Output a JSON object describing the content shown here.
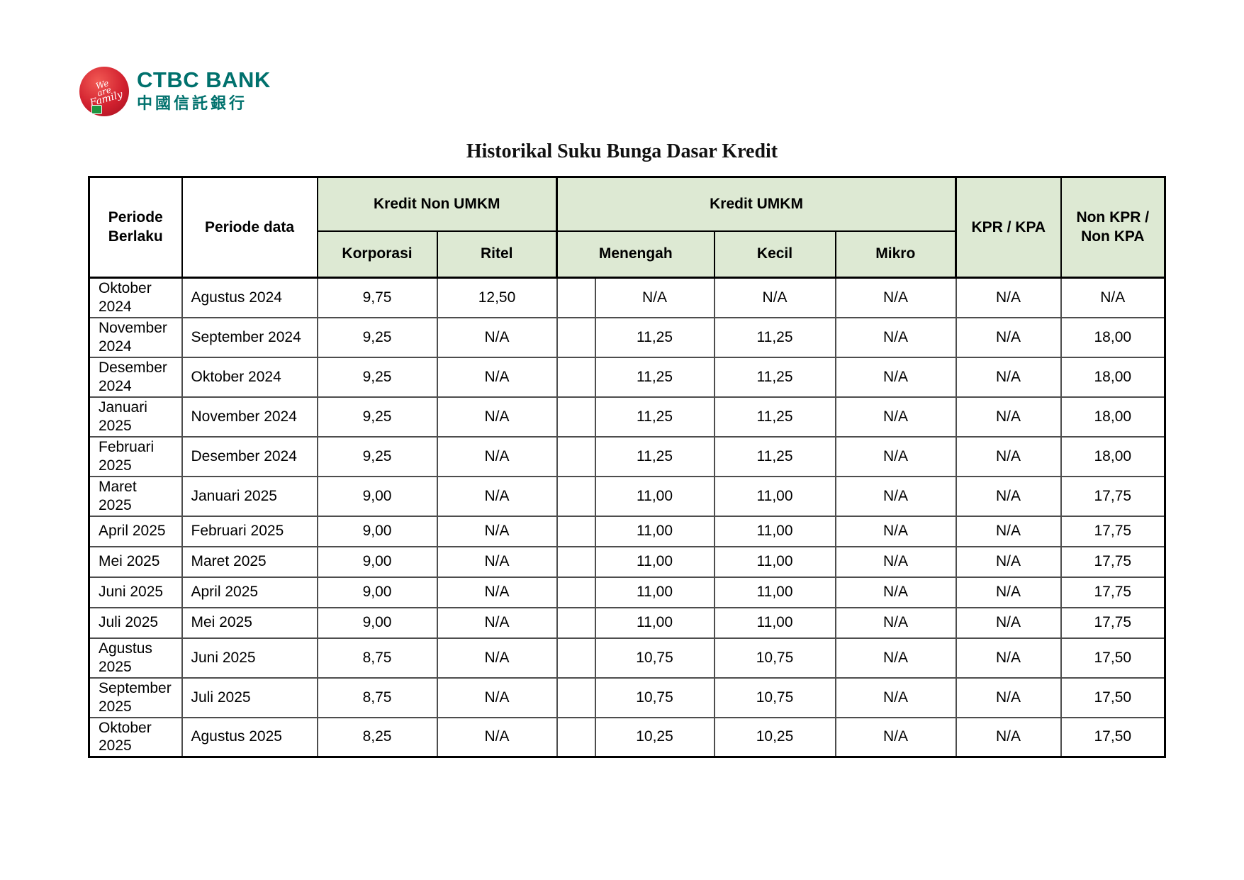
{
  "logo": {
    "bank_name": "CTBC BANK",
    "bank_name_cn": "中國信託銀行",
    "emblem_script": {
      "line1": "We",
      "line2": "are",
      "line3": "Family"
    }
  },
  "title": "Historikal Suku Bunga Dasar Kredit",
  "colors": {
    "header_green": "#dde9d3",
    "logo_teal": "#00716d",
    "logo_red": "#d2212f",
    "badge_green": "#1f9440"
  },
  "table": {
    "header": {
      "periode_berlaku": "Periode\nBerlaku",
      "periode_data": "Periode data",
      "kredit_non_umkm": "Kredit Non UMKM",
      "kredit_umkm": "Kredit UMKM",
      "korporasi": "Korporasi",
      "ritel": "Ritel",
      "menengah": "Menengah",
      "kecil": "Kecil",
      "mikro": "Mikro",
      "kpr_kpa": "KPR / KPA",
      "non_kpr_kpa": "Non KPR /\nNon KPA"
    },
    "rows": [
      {
        "periode_berlaku": "Oktober\n2024",
        "periode_data": "Agustus 2024",
        "korporasi": "9,75",
        "ritel": "12,50",
        "menengah": "N/A",
        "kecil": "N/A",
        "mikro": "N/A",
        "kpr_kpa": "N/A",
        "non_kpr_kpa": "N/A"
      },
      {
        "periode_berlaku": "November\n2024",
        "periode_data": "September 2024",
        "korporasi": "9,25",
        "ritel": "N/A",
        "menengah": "11,25",
        "kecil": "11,25",
        "mikro": "N/A",
        "kpr_kpa": "N/A",
        "non_kpr_kpa": "18,00"
      },
      {
        "periode_berlaku": "Desember\n2024",
        "periode_data": "Oktober 2024",
        "korporasi": "9,25",
        "ritel": "N/A",
        "menengah": "11,25",
        "kecil": "11,25",
        "mikro": "N/A",
        "kpr_kpa": "N/A",
        "non_kpr_kpa": "18,00"
      },
      {
        "periode_berlaku": "Januari\n2025",
        "periode_data": "November 2024",
        "korporasi": "9,25",
        "ritel": "N/A",
        "menengah": "11,25",
        "kecil": "11,25",
        "mikro": "N/A",
        "kpr_kpa": "N/A",
        "non_kpr_kpa": "18,00"
      },
      {
        "periode_berlaku": "Februari\n2025",
        "periode_data": "Desember 2024",
        "korporasi": "9,25",
        "ritel": "N/A",
        "menengah": "11,25",
        "kecil": "11,25",
        "mikro": "N/A",
        "kpr_kpa": "N/A",
        "non_kpr_kpa": "18,00"
      },
      {
        "periode_berlaku": "Maret\n2025",
        "periode_data": "Januari 2025",
        "korporasi": "9,00",
        "ritel": "N/A",
        "menengah": "11,00",
        "kecil": "11,00",
        "mikro": "N/A",
        "kpr_kpa": "N/A",
        "non_kpr_kpa": "17,75"
      },
      {
        "periode_berlaku": "April 2025",
        "periode_data": "Februari 2025",
        "korporasi": "9,00",
        "ritel": "N/A",
        "menengah": "11,00",
        "kecil": "11,00",
        "mikro": "N/A",
        "kpr_kpa": "N/A",
        "non_kpr_kpa": "17,75"
      },
      {
        "periode_berlaku": "Mei 2025",
        "periode_data": "Maret 2025",
        "korporasi": "9,00",
        "ritel": "N/A",
        "menengah": "11,00",
        "kecil": "11,00",
        "mikro": "N/A",
        "kpr_kpa": "N/A",
        "non_kpr_kpa": "17,75"
      },
      {
        "periode_berlaku": "Juni 2025",
        "periode_data": "April 2025",
        "korporasi": "9,00",
        "ritel": "N/A",
        "menengah": "11,00",
        "kecil": "11,00",
        "mikro": "N/A",
        "kpr_kpa": "N/A",
        "non_kpr_kpa": "17,75"
      },
      {
        "periode_berlaku": "Juli 2025",
        "periode_data": "Mei 2025",
        "korporasi": "9,00",
        "ritel": "N/A",
        "menengah": "11,00",
        "kecil": "11,00",
        "mikro": "N/A",
        "kpr_kpa": "N/A",
        "non_kpr_kpa": "17,75"
      },
      {
        "periode_berlaku": "Agustus\n2025",
        "periode_data": "Juni 2025",
        "korporasi": "8,75",
        "ritel": "N/A",
        "menengah": "10,75",
        "kecil": "10,75",
        "mikro": "N/A",
        "kpr_kpa": "N/A",
        "non_kpr_kpa": "17,50"
      },
      {
        "periode_berlaku": "September\n2025",
        "periode_data": "Juli 2025",
        "korporasi": "8,75",
        "ritel": "N/A",
        "menengah": "10,75",
        "kecil": "10,75",
        "mikro": "N/A",
        "kpr_kpa": "N/A",
        "non_kpr_kpa": "17,50"
      },
      {
        "periode_berlaku": "Oktober\n2025",
        "periode_data": "Agustus 2025",
        "korporasi": "8,25",
        "ritel": "N/A",
        "menengah": "10,25",
        "kecil": "10,25",
        "mikro": "N/A",
        "kpr_kpa": "N/A",
        "non_kpr_kpa": "17,50"
      }
    ]
  }
}
